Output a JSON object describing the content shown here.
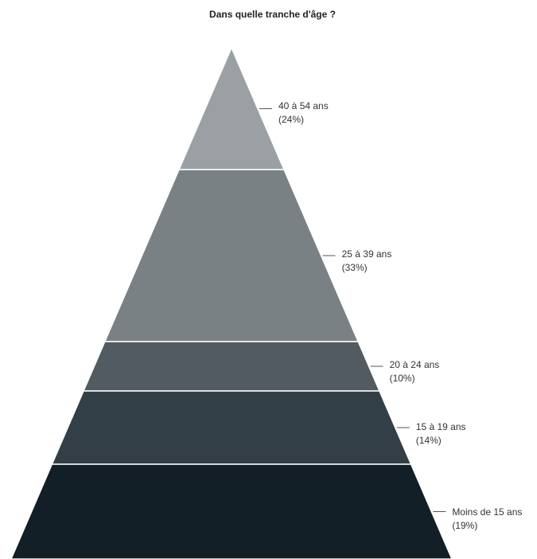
{
  "chart_data": {
    "type": "pyramid",
    "title": "Dans quelle tranche d'âge ?",
    "segments": [
      {
        "name": "40 à 54 ans",
        "pct_label": "(24%)",
        "color": "#9aa0a3"
      },
      {
        "name": "25 à 39 ans",
        "pct_label": "(33%)",
        "color": "#7a8184"
      },
      {
        "name": "20 à 24 ans",
        "pct_label": "(10%)",
        "color": "#525b61"
      },
      {
        "name": "15 à 19 ans",
        "pct_label": "(14%)",
        "color": "#333f46"
      },
      {
        "name": "Moins de 15 ans",
        "pct_label": "(19%)",
        "color": "#121f26"
      }
    ]
  }
}
